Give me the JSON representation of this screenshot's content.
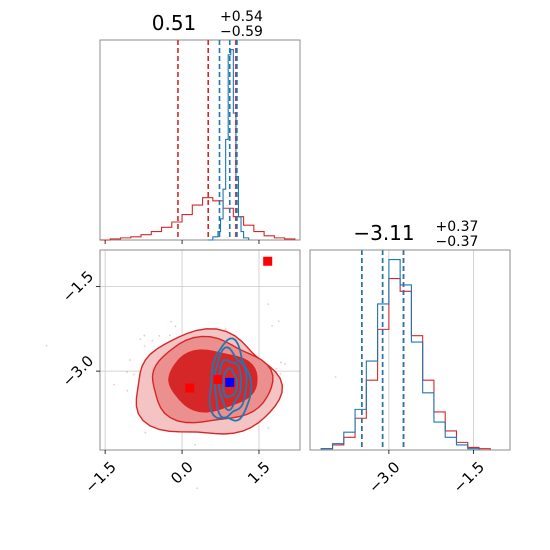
{
  "chart_data": [
    {
      "type": "histogram",
      "panel": "top-left",
      "title": {
        "value": "0.51",
        "plus": "+0.54",
        "minus": "−0.59"
      },
      "xlim": [
        -1.6,
        2.3
      ],
      "series": [
        {
          "name": "",
          "color": "#d62728",
          "style": "step",
          "x": [
            -1.6,
            -1.4,
            -1.2,
            -1.0,
            -0.8,
            -0.6,
            -0.4,
            -0.2,
            0.0,
            0.2,
            0.4,
            0.6,
            0.8,
            1.0,
            1.2,
            1.4,
            1.6,
            1.8,
            2.0,
            2.2
          ],
          "y": [
            0,
            1,
            2,
            3,
            5,
            8,
            12,
            17,
            24,
            33,
            40,
            37,
            30,
            22,
            14,
            8,
            4,
            2,
            1,
            0
          ]
        },
        {
          "name": "",
          "color": "#1f77b4",
          "style": "step",
          "x": [
            0.5,
            0.6,
            0.7,
            0.75,
            0.8,
            0.85,
            0.9,
            0.95,
            1.0,
            1.05,
            1.1,
            1.15,
            1.2,
            1.3
          ],
          "y": [
            0,
            3,
            8,
            20,
            48,
            95,
            175,
            180,
            120,
            60,
            22,
            8,
            2,
            0
          ]
        }
      ],
      "vlines": [
        {
          "color": "#d62728",
          "x": [
            -0.08,
            0.51,
            1.05
          ]
        },
        {
          "color": "#1f77b4",
          "x": [
            0.73,
            0.93,
            1.07
          ]
        }
      ]
    },
    {
      "type": "contour",
      "panel": "bottom-left",
      "xlim": [
        -1.6,
        2.3
      ],
      "ylim": [
        -4.4,
        -0.85
      ],
      "xticks": [
        "−1.5",
        "0.0",
        "1.5"
      ],
      "yticks": [
        "−1.5",
        "−3.0"
      ],
      "grid": true,
      "series": [
        {
          "name": "",
          "color": "#d62728",
          "style": "filled-contour",
          "center": [
            0.51,
            -3.11
          ]
        },
        {
          "name": "",
          "color": "#1f77b4",
          "style": "contour",
          "center": [
            0.93,
            -3.11
          ]
        }
      ],
      "markers": [
        {
          "color": "#ff0000",
          "x": 1.67,
          "y": -1.05
        },
        {
          "color": "#ff0000",
          "x": 0.15,
          "y": -3.3
        },
        {
          "color": "#ff0000",
          "x": 0.7,
          "y": -3.15
        },
        {
          "color": "#0000ff",
          "x": 0.93,
          "y": -3.2
        }
      ]
    },
    {
      "type": "histogram",
      "panel": "bottom-right",
      "title": {
        "value": "−3.11",
        "plus": "+0.37",
        "minus": "−0.37"
      },
      "xlim": [
        -4.4,
        -0.85
      ],
      "xticks": [
        "−3.0",
        "−1.5"
      ],
      "grid": true,
      "series": [
        {
          "name": "",
          "color": "#d62728",
          "style": "step",
          "x": [
            -4.4,
            -4.2,
            -4.0,
            -3.8,
            -3.6,
            -3.4,
            -3.2,
            -3.0,
            -2.8,
            -2.6,
            -2.4,
            -2.2,
            -2.0,
            -1.8,
            -1.6,
            -1.4,
            -1.2,
            -1.0
          ],
          "y": [
            0,
            1,
            4,
            10,
            25,
            55,
            95,
            135,
            125,
            90,
            55,
            30,
            15,
            6,
            2,
            1,
            0,
            0
          ]
        },
        {
          "name": "",
          "color": "#1f77b4",
          "style": "step",
          "x": [
            -4.4,
            -4.2,
            -4.0,
            -3.8,
            -3.6,
            -3.4,
            -3.2,
            -3.0,
            -2.8,
            -2.6,
            -2.4,
            -2.2,
            -2.0,
            -1.8,
            -1.6,
            -1.4,
            -1.2,
            -1.0
          ],
          "y": [
            0,
            1,
            5,
            14,
            32,
            70,
            115,
            150,
            130,
            85,
            45,
            22,
            10,
            4,
            1,
            0,
            0,
            0
          ]
        }
      ],
      "vlines": [
        {
          "color": "#d62728",
          "x": [
            -3.48,
            -3.11,
            -2.74
          ]
        },
        {
          "color": "#1f77b4",
          "x": [
            -3.48,
            -3.11,
            -2.74
          ]
        }
      ]
    }
  ]
}
